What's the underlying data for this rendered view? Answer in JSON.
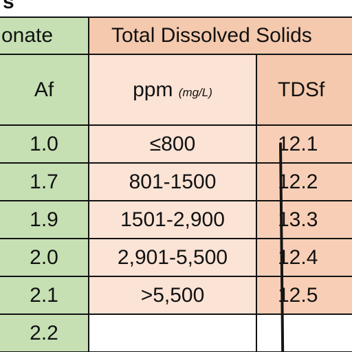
{
  "title_fragment": "s",
  "headers": {
    "alkalinity_fragment": "onate",
    "tds_title": "Total Dissolved Solids",
    "af": "Af",
    "ppm": "ppm",
    "ppm_unit": "(mg/L)",
    "tdsf": "TDSf"
  },
  "rows": [
    {
      "af": "1.0",
      "ppm": "≤800",
      "tdsf": "12.1"
    },
    {
      "af": "1.7",
      "ppm": "801-1500",
      "tdsf": "12.2"
    },
    {
      "af": "1.9",
      "ppm": "1501-2,900",
      "tdsf": "13.3"
    },
    {
      "af": "2.0",
      "ppm": "2,901-5,500",
      "tdsf": "12.4"
    },
    {
      "af": "2.1",
      "ppm": ">5,500",
      "tdsf": "12.5"
    },
    {
      "af": "2.2",
      "ppm": "",
      "tdsf": ""
    }
  ],
  "colors": {
    "green": "#c6e0b4",
    "peach_head": "#f4c9ad",
    "peach_light": "#fbe3d5"
  }
}
